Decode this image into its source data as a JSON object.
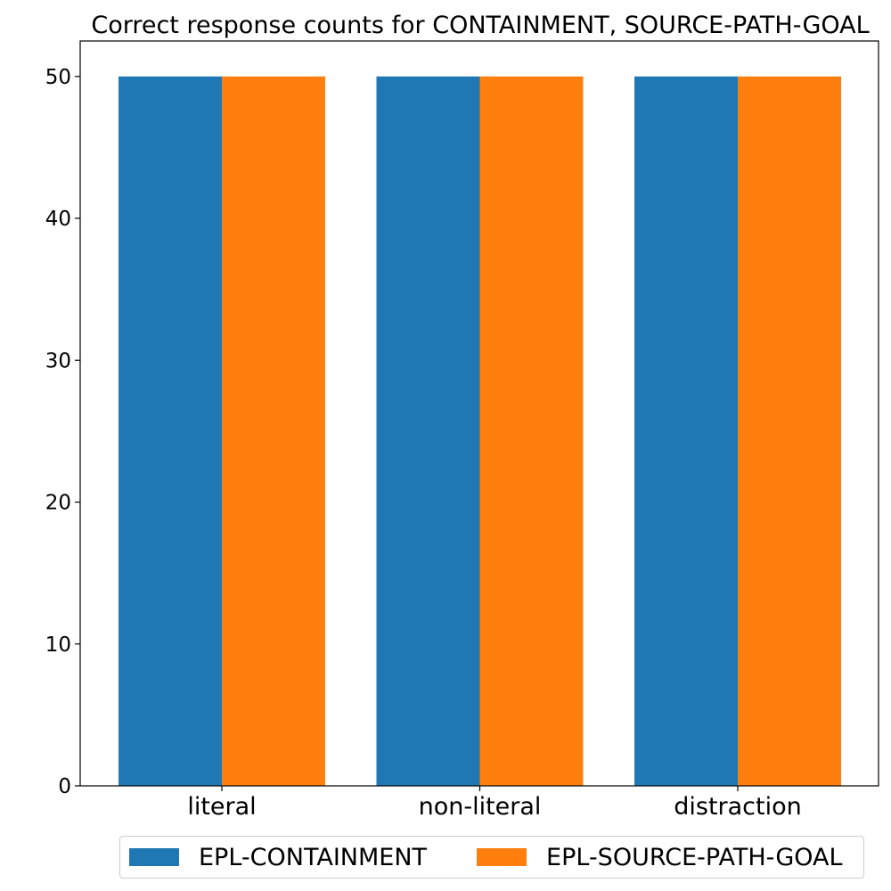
{
  "chart_data": {
    "type": "bar",
    "title": "Correct response counts for CONTAINMENT, SOURCE-PATH-GOAL",
    "categories": [
      "literal",
      "non-literal",
      "distraction"
    ],
    "series": [
      {
        "name": "EPL-CONTAINMENT",
        "values": [
          50,
          50,
          50
        ],
        "color": "#1f77b4"
      },
      {
        "name": "EPL-SOURCE-PATH-GOAL",
        "values": [
          50,
          50,
          50
        ],
        "color": "#ff7f0e"
      }
    ],
    "xlabel": "",
    "ylabel": "",
    "ylim": [
      0,
      52.5
    ],
    "yticks": [
      0,
      10,
      20,
      30,
      40,
      50
    ],
    "legend": "bottom-center"
  }
}
